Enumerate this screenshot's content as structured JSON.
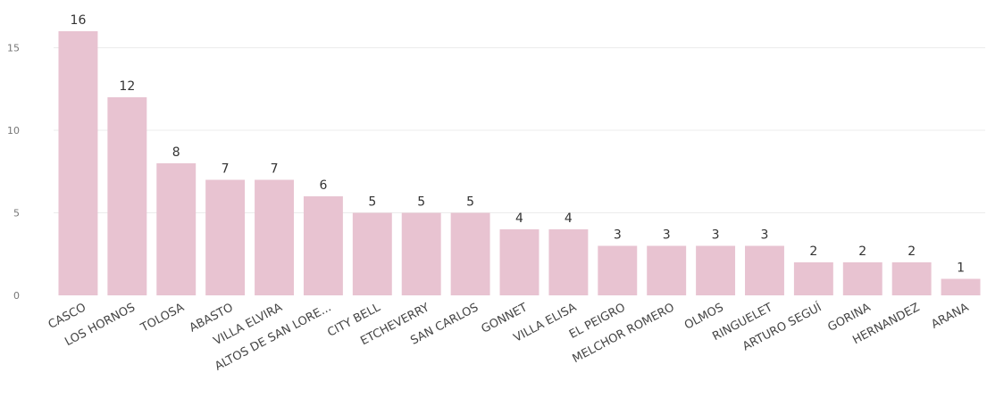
{
  "chart_data": {
    "type": "bar",
    "categories": [
      "CASCO",
      "LOS HORNOS",
      "TOLOSA",
      "ABASTO",
      "VILLA ELVIRA",
      "ALTOS DE SAN LORE...",
      "CITY BELL",
      "ETCHEVERRY",
      "SAN CARLOS",
      "GONNET",
      "VILLA ELISA",
      "EL PEIGRO",
      "MELCHOR ROMERO",
      "OLMOS",
      "RINGUELET",
      "ARTURO SEGUÍ",
      "GORINA",
      "HERNANDEZ",
      "ARANA"
    ],
    "values": [
      16,
      12,
      8,
      7,
      7,
      6,
      5,
      5,
      5,
      4,
      4,
      3,
      3,
      3,
      3,
      2,
      2,
      2,
      1
    ],
    "yticks": [
      0,
      5,
      10,
      15
    ],
    "ylim": [
      0,
      16
    ],
    "grid": true,
    "data_labels": true,
    "bar_color": "#e8c3d1"
  }
}
